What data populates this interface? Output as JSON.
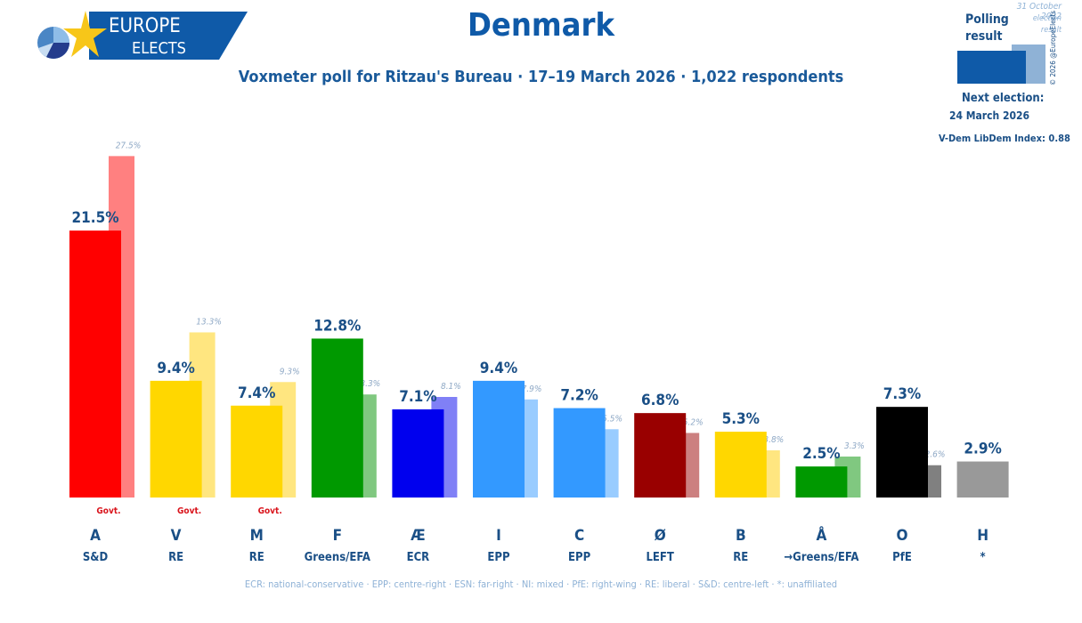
{
  "header": {
    "logo_line1": "EUROPE",
    "logo_line2": "ELECTS",
    "title": "Denmark",
    "subtitle": "Voxmeter poll for Ritzau's Bureau · 17–19 March 2026 · 1,022 respondents"
  },
  "legend": {
    "polling_label_1": "Polling",
    "polling_label_2": "result",
    "election_date": "31 October 2022",
    "election_label_1": "election",
    "election_label_2": "result",
    "copyright": "© 2026 @EuropeElects",
    "next_election_label": "Next election:",
    "next_election_date": "24 March 2026",
    "vdem": "V-Dem LibDem Index: 0.88",
    "polling_color": "#0f5aa8",
    "election_color": "#8fb2d6"
  },
  "chart_data": {
    "type": "bar",
    "title": "Denmark",
    "subtitle": "Voxmeter poll for Ritzau's Bureau · 17–19 March 2026 · 1,022 respondents",
    "xlabel": "",
    "ylabel": "",
    "ylim": [
      0,
      30
    ],
    "grid": false,
    "categories": [
      "A",
      "V",
      "M",
      "F",
      "Æ",
      "I",
      "C",
      "Ø",
      "B",
      "Å",
      "O",
      "H"
    ],
    "groups": [
      "S&D",
      "RE",
      "RE",
      "Greens/EFA",
      "ECR",
      "EPP",
      "EPP",
      "LEFT",
      "RE",
      "→Greens/EFA",
      "PfE",
      "*"
    ],
    "government": [
      true,
      true,
      true,
      false,
      false,
      false,
      false,
      false,
      false,
      false,
      false,
      false
    ],
    "government_label": "Govt.",
    "series": [
      {
        "name": "Polling result",
        "values": [
          21.5,
          9.4,
          7.4,
          12.8,
          7.1,
          9.4,
          7.2,
          6.8,
          5.3,
          2.5,
          7.3,
          2.9
        ],
        "labels": [
          "21.5%",
          "9.4%",
          "7.4%",
          "12.8%",
          "7.1%",
          "9.4%",
          "7.2%",
          "6.8%",
          "5.3%",
          "2.5%",
          "7.3%",
          "2.9%"
        ]
      },
      {
        "name": "31 October 2022 election result",
        "values": [
          27.5,
          13.3,
          9.3,
          8.3,
          8.1,
          7.9,
          5.5,
          5.2,
          3.8,
          3.3,
          2.6,
          null
        ],
        "labels": [
          "27.5%",
          "13.3%",
          "9.3%",
          "8.3%",
          "8.1%",
          "7.9%",
          "5.5%",
          "5.2%",
          "3.8%",
          "3.3%",
          "2.6%",
          null
        ]
      }
    ],
    "colors": [
      "#ff0000",
      "#ffd700",
      "#ffd700",
      "#009900",
      "#0000ee",
      "#3399ff",
      "#3399ff",
      "#990000",
      "#ffd700",
      "#009900",
      "#000000",
      "#999999"
    ],
    "prev_colors": [
      "#ff8080",
      "#ffe680",
      "#ffe680",
      "#80c880",
      "#8080f6",
      "#99ccff",
      "#99ccff",
      "#cc8080",
      "#ffe680",
      "#80c880",
      "#808080",
      null
    ]
  },
  "footnote": "ECR: national-conservative · EPP: centre-right · ESN: far-right · NI: mixed · PfE: right-wing · RE: liberal · S&D: centre-left · *: unaffiliated"
}
